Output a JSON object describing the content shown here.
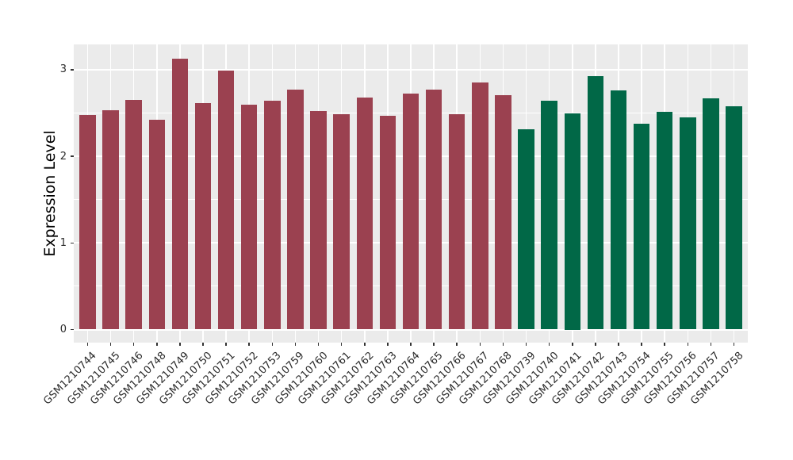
{
  "figure": {
    "background": "#FFFFFF",
    "panel_background": "#EBEBEB",
    "gridline_color": "#FFFFFF",
    "axis_text_color": "#2B2B2B",
    "axis_title_color": "#000000"
  },
  "chart_data": {
    "type": "bar",
    "title": "",
    "xlabel": "",
    "ylabel": "Expression Level",
    "ylim": [
      0,
      3.29
    ],
    "yticks": [
      0,
      1,
      2,
      3
    ],
    "minor_gridlines": [
      0.5,
      1.5,
      2.5
    ],
    "grid": "white major and minor gridlines on gray panel, legend none",
    "legend_position": "none",
    "group_colors": {
      "left_group_maroon": "#9B4150",
      "right_group_green": "#016847"
    },
    "categories": [
      "GSM1210744",
      "GSM1210745",
      "GSM1210746",
      "GSM1210748",
      "GSM1210749",
      "GSM1210750",
      "GSM1210751",
      "GSM1210752",
      "GSM1210753",
      "GSM1210759",
      "GSM1210760",
      "GSM1210761",
      "GSM1210762",
      "GSM1210763",
      "GSM1210764",
      "GSM1210765",
      "GSM1210766",
      "GSM1210767",
      "GSM1210768",
      "GSM1210739",
      "GSM1210740",
      "GSM1210741",
      "GSM1210742",
      "GSM1210743",
      "GSM1210754",
      "GSM1210755",
      "GSM1210756",
      "GSM1210757",
      "GSM1210758"
    ],
    "values": [
      2.48,
      2.53,
      2.65,
      2.42,
      3.13,
      2.61,
      2.99,
      2.6,
      2.64,
      2.77,
      2.52,
      2.49,
      2.68,
      2.47,
      2.72,
      2.77,
      2.49,
      2.85,
      2.71,
      2.31,
      2.64,
      2.5,
      2.93,
      2.76,
      2.38,
      2.51,
      2.45,
      2.67,
      2.58
    ],
    "colors": [
      "#9B4150",
      "#9B4150",
      "#9B4150",
      "#9B4150",
      "#9B4150",
      "#9B4150",
      "#9B4150",
      "#9B4150",
      "#9B4150",
      "#9B4150",
      "#9B4150",
      "#9B4150",
      "#9B4150",
      "#9B4150",
      "#9B4150",
      "#9B4150",
      "#9B4150",
      "#9B4150",
      "#9B4150",
      "#016847",
      "#016847",
      "#016847",
      "#016847",
      "#016847",
      "#016847",
      "#016847",
      "#016847",
      "#016847",
      "#016847"
    ]
  }
}
